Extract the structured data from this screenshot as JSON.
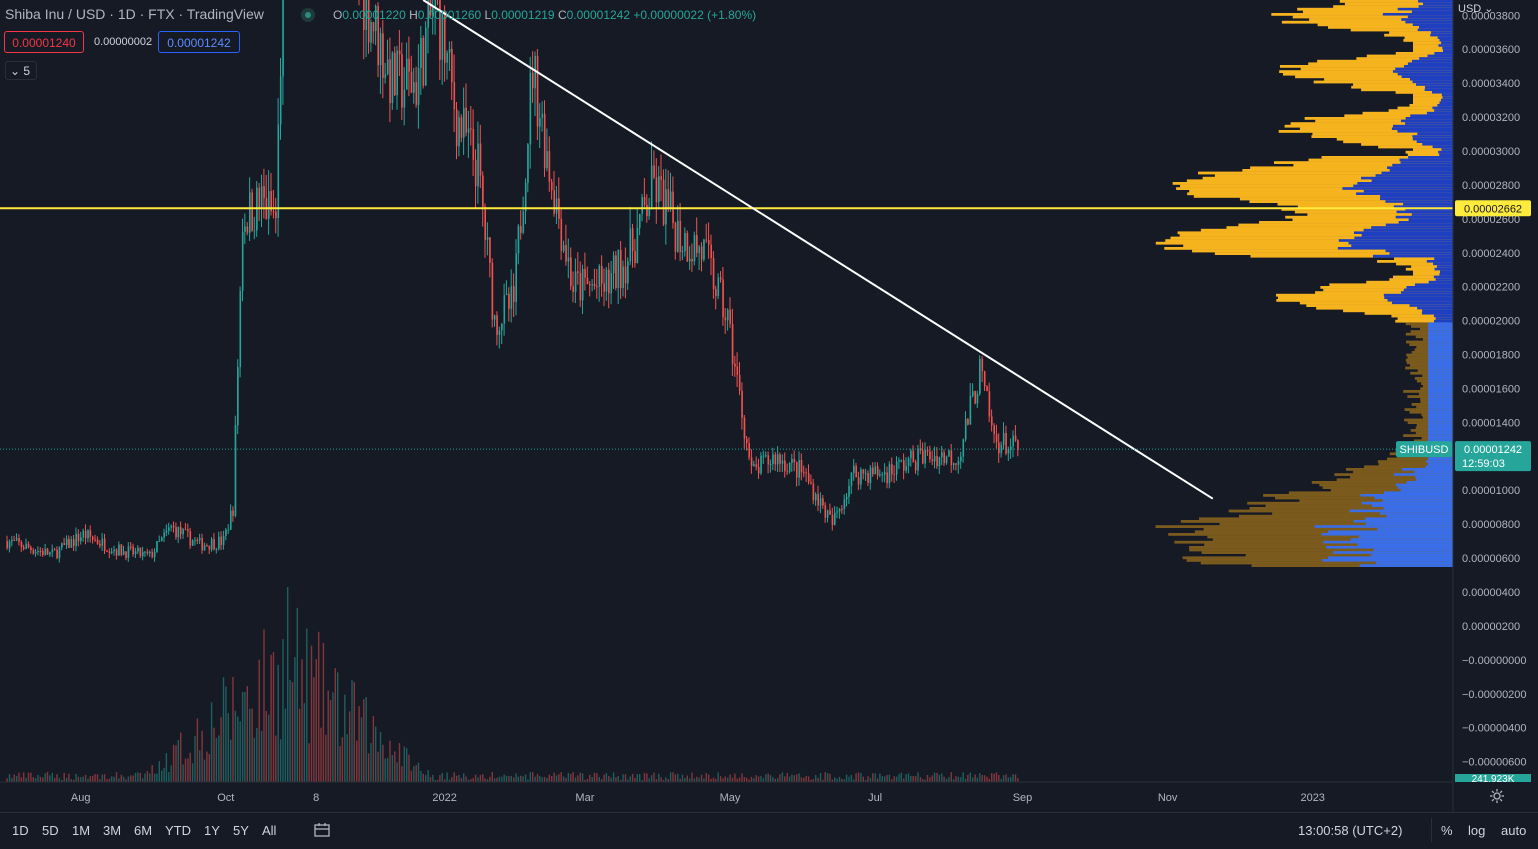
{
  "header": {
    "symbol_title": "Shiba Inu / USD · 1D · FTX · TradingView",
    "ohlc": {
      "o_label": "O",
      "o": "0.00001220",
      "h_label": "H",
      "h": "0.00001260",
      "l_label": "L",
      "l": "0.00001219",
      "c_label": "C",
      "c": "0.00001242",
      "change": "+0.00000022 (+1.80%)"
    },
    "sell_price": "0.00001240",
    "spread": "0.00000002",
    "buy_price": "0.00001242",
    "indicator_toggle": "⌄ 5",
    "currency": "USD ⌄"
  },
  "chart_data": {
    "type": "candlestick",
    "symbol": "SHIBUSD",
    "x_axis": {
      "ticks": [
        {
          "label": "Aug",
          "date": "2021-08-01"
        },
        {
          "label": "Oct",
          "date": "2021-10-01"
        },
        {
          "label": "8",
          "date": "2021-11-08"
        },
        {
          "label": "2022",
          "date": "2022-01-01"
        },
        {
          "label": "Mar",
          "date": "2022-03-01"
        },
        {
          "label": "May",
          "date": "2022-05-01"
        },
        {
          "label": "Jul",
          "date": "2022-07-01"
        },
        {
          "label": "Sep",
          "date": "2022-09-01"
        },
        {
          "label": "Nov",
          "date": "2022-11-01"
        },
        {
          "label": "2023",
          "date": "2023-01-01"
        }
      ],
      "range": [
        "2021-07-01",
        "2023-03-01"
      ]
    },
    "y_axis": {
      "range": [
        -7.2e-06,
        3.89e-05
      ],
      "ticks": [
        "0.00003800",
        "0.00003600",
        "0.00003400",
        "0.00003200",
        "0.00003000",
        "0.00002800",
        "0.00002600",
        "0.00002400",
        "0.00002200",
        "0.00002000",
        "0.00001800",
        "0.00001600",
        "0.00001400",
        "0.00001200",
        "0.00001000",
        "0.00000800",
        "0.00000600",
        "0.00000400",
        "0.00000200",
        "−0.00000000",
        "−0.00000200",
        "−0.00000400",
        "−0.00000600"
      ],
      "tick_values": [
        3.8e-05,
        3.6e-05,
        3.4e-05,
        3.2e-05,
        3e-05,
        2.8e-05,
        2.6e-05,
        2.4e-05,
        2.2e-05,
        2e-05,
        1.8e-05,
        1.6e-05,
        1.4e-05,
        1.2e-05,
        1e-05,
        8e-06,
        6e-06,
        4e-06,
        2e-06,
        0,
        -2e-06,
        -4e-06,
        -6e-06
      ]
    },
    "price_anchors": [
      {
        "date": "2021-07-01",
        "close": 7e-06
      },
      {
        "date": "2021-07-20",
        "close": 6.2e-06
      },
      {
        "date": "2021-08-02",
        "close": 7.4e-06
      },
      {
        "date": "2021-08-16",
        "close": 6.5e-06
      },
      {
        "date": "2021-08-30",
        "close": 6.1e-06
      },
      {
        "date": "2021-09-08",
        "close": 7.8e-06
      },
      {
        "date": "2021-09-20",
        "close": 6.8e-06
      },
      {
        "date": "2021-09-30",
        "close": 7e-06
      },
      {
        "date": "2021-10-04",
        "close": 9e-06
      },
      {
        "date": "2021-10-08",
        "close": 2.6e-05
      },
      {
        "date": "2021-10-16",
        "close": 2.7e-05
      },
      {
        "date": "2021-10-22",
        "close": 2.6e-05
      },
      {
        "date": "2021-10-27",
        "close": 5e-05
      },
      {
        "date": "2021-11-03",
        "close": 6e-05
      },
      {
        "date": "2021-11-12",
        "close": 4.5e-05
      },
      {
        "date": "2021-11-22",
        "close": 4.2e-05
      },
      {
        "date": "2021-12-01",
        "close": 3.8e-05
      },
      {
        "date": "2021-12-10",
        "close": 3.4e-05
      },
      {
        "date": "2021-12-20",
        "close": 3.4e-05
      },
      {
        "date": "2021-12-28",
        "close": 3.9e-05
      },
      {
        "date": "2022-01-06",
        "close": 3.2e-05
      },
      {
        "date": "2022-01-15",
        "close": 2.9e-05
      },
      {
        "date": "2022-01-22",
        "close": 2e-05
      },
      {
        "date": "2022-01-30",
        "close": 2.1e-05
      },
      {
        "date": "2022-02-07",
        "close": 3.5e-05
      },
      {
        "date": "2022-02-14",
        "close": 2.9e-05
      },
      {
        "date": "2022-02-24",
        "close": 2.2e-05
      },
      {
        "date": "2022-03-10",
        "close": 2.2e-05
      },
      {
        "date": "2022-03-20",
        "close": 2.4e-05
      },
      {
        "date": "2022-03-30",
        "close": 2.8e-05
      },
      {
        "date": "2022-04-10",
        "close": 2.5e-05
      },
      {
        "date": "2022-04-20",
        "close": 2.4e-05
      },
      {
        "date": "2022-04-30",
        "close": 2e-05
      },
      {
        "date": "2022-05-10",
        "close": 1.1e-05
      },
      {
        "date": "2022-05-20",
        "close": 1.2e-05
      },
      {
        "date": "2022-06-01",
        "close": 1.1e-05
      },
      {
        "date": "2022-06-13",
        "close": 8e-06
      },
      {
        "date": "2022-06-22",
        "close": 1.1e-05
      },
      {
        "date": "2022-07-05",
        "close": 1.1e-05
      },
      {
        "date": "2022-07-20",
        "close": 1.2e-05
      },
      {
        "date": "2022-08-05",
        "close": 1.2e-05
      },
      {
        "date": "2022-08-14",
        "close": 1.7e-05
      },
      {
        "date": "2022-08-20",
        "close": 1.3e-05
      },
      {
        "date": "2022-08-30",
        "close": 1.24e-05
      }
    ],
    "last_price": 1.242e-05,
    "last_price_label": "0.00001242",
    "countdown": "12:59:03",
    "symbol_tag": "SHIBUSD",
    "horizontal_line": {
      "value": 2.662e-05,
      "label": "0.00002662",
      "color": "#ffeb3b"
    },
    "trend_line": {
      "start": {
        "date": "2021-12-23",
        "value": 3.89e-05
      },
      "end": {
        "date": "2022-11-20",
        "value": 9.5e-06
      },
      "color": "#ffffff"
    },
    "volume": {
      "last_label": "241.923K",
      "peak_date": "2021-10-27"
    },
    "volume_profile": {
      "value_area_color": "#1e3fbf",
      "upper_color": "#f5b41e",
      "lower_color": "#7a5b1d",
      "split_value": 2e-05
    },
    "up_color": "#26a69a",
    "down_color": "#ef5350",
    "grid": false
  },
  "bottom_bar": {
    "ranges": [
      "1D",
      "5D",
      "1M",
      "3M",
      "6M",
      "YTD",
      "1Y",
      "5Y",
      "All"
    ],
    "time": "13:00:58 (UTC+2)",
    "percent": "%",
    "log": "log",
    "auto": "auto"
  }
}
